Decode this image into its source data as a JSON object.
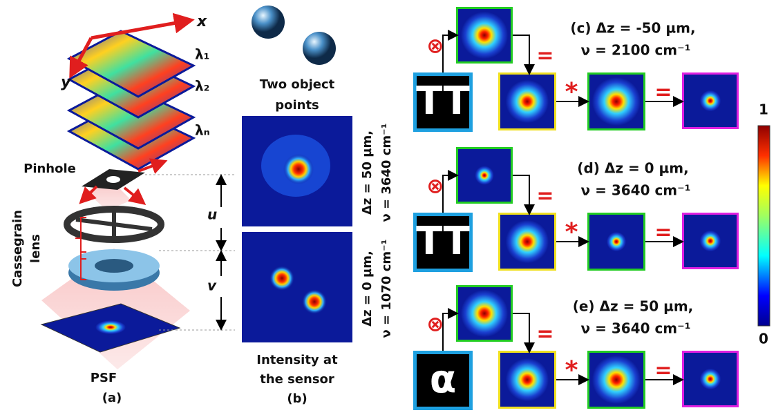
{
  "panel_a": {
    "x_label": "x",
    "y_label": "y",
    "layers": [
      "λ₁",
      "λ₂",
      "λₙ"
    ],
    "pinhole": "Pinhole",
    "lens_line1": "Cassegrain",
    "lens_line2": "lens",
    "u_label": "u",
    "v_label": "v",
    "psf": "PSF",
    "caption": "(a)"
  },
  "panel_b": {
    "top_line1": "Two object",
    "top_line2": "points",
    "side_top_line1": "Δz = 50 µm,",
    "side_top_line2": "ν = 3640 cm⁻¹",
    "side_bottom_line1": "Δz = 0 µm,",
    "side_bottom_line2": "ν = 1070 cm⁻¹",
    "bottom_line1": "Intensity at",
    "bottom_line2": "the sensor",
    "caption": "(b)"
  },
  "operators": {
    "convolve": "⊗",
    "equals": "=",
    "star": "*"
  },
  "rows": [
    {
      "title_line1": "(c) Δz = -50 µm,",
      "title_line2": "ν = 2100 cm⁻¹",
      "object": "TT"
    },
    {
      "title_line1": "(d) Δz = 0 µm,",
      "title_line2": "ν = 3640 cm⁻¹",
      "object": "TT"
    },
    {
      "title_line1": "(e) Δz = 50 µm,",
      "title_line2": "ν = 3640 cm⁻¹",
      "object": "α"
    }
  ],
  "colorbar": {
    "max_label": "1",
    "min_label": "0"
  }
}
